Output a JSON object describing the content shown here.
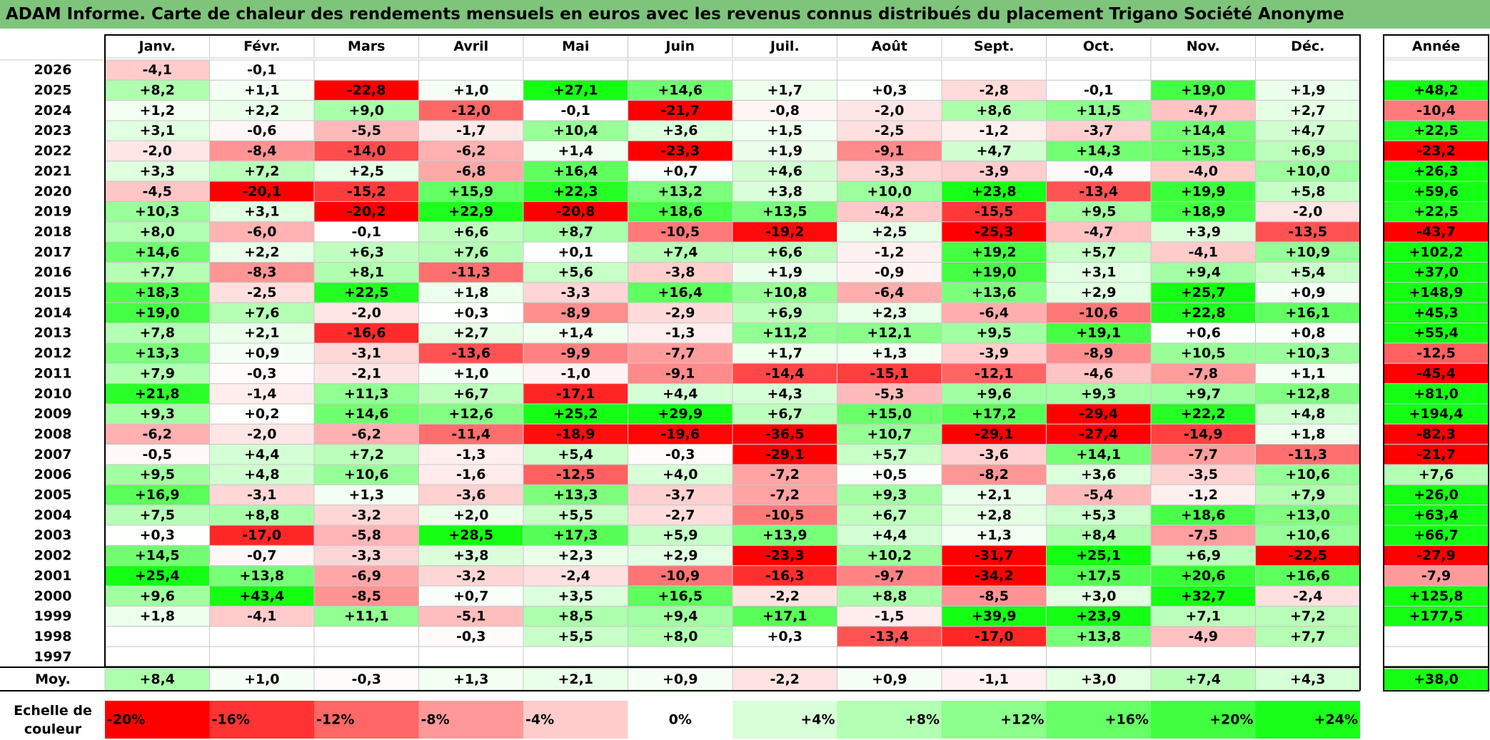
{
  "title": "ADAM Informe. Carte de chaleur des rendements mensuels en euros avec les revenus connus distribués du placement Trigano Société Anonyme",
  "chart_data": {
    "type": "heatmap",
    "columns": [
      "Janv.",
      "Févr.",
      "Mars",
      "Avril",
      "Mai",
      "Juin",
      "Juil.",
      "Août",
      "Sept.",
      "Oct.",
      "Nov.",
      "Déc."
    ],
    "annual_header": "Année",
    "rows": [
      {
        "year": "2026",
        "months": [
          "-4,1",
          "-0,1",
          "",
          "",
          "",
          "",
          "",
          "",
          "",
          "",
          "",
          ""
        ],
        "annual": ""
      },
      {
        "year": "2025",
        "months": [
          "+8,2",
          "+1,1",
          "-22,8",
          "+1,0",
          "+27,1",
          "+14,6",
          "+1,7",
          "+0,3",
          "-2,8",
          "-0,1",
          "+19,0",
          "+1,9"
        ],
        "annual": "+48,2"
      },
      {
        "year": "2024",
        "months": [
          "+1,2",
          "+2,2",
          "+9,0",
          "-12,0",
          "-0,1",
          "-21,7",
          "-0,8",
          "-2,0",
          "+8,6",
          "+11,5",
          "-4,7",
          "+2,7"
        ],
        "annual": "-10,4"
      },
      {
        "year": "2023",
        "months": [
          "+3,1",
          "-0,6",
          "-5,5",
          "-1,7",
          "+10,4",
          "+3,6",
          "+1,5",
          "-2,5",
          "-1,2",
          "-3,7",
          "+14,4",
          "+4,7"
        ],
        "annual": "+22,5"
      },
      {
        "year": "2022",
        "months": [
          "-2,0",
          "-8,4",
          "-14,0",
          "-6,2",
          "+1,4",
          "-23,3",
          "+1,9",
          "-9,1",
          "+4,7",
          "+14,3",
          "+15,3",
          "+6,9"
        ],
        "annual": "-23,2"
      },
      {
        "year": "2021",
        "months": [
          "+3,3",
          "+7,2",
          "+2,5",
          "-6,8",
          "+16,4",
          "+0,7",
          "+4,6",
          "-3,3",
          "-3,9",
          "-0,4",
          "-4,0",
          "+10,0"
        ],
        "annual": "+26,3"
      },
      {
        "year": "2020",
        "months": [
          "-4,5",
          "-20,1",
          "-15,2",
          "+15,9",
          "+22,3",
          "+13,2",
          "+3,8",
          "+10,0",
          "+23,8",
          "-13,4",
          "+19,9",
          "+5,8"
        ],
        "annual": "+59,6"
      },
      {
        "year": "2019",
        "months": [
          "+10,3",
          "+3,1",
          "-20,2",
          "+22,9",
          "-20,8",
          "+18,6",
          "+13,5",
          "-4,2",
          "-15,5",
          "+9,5",
          "+18,9",
          "-2,0"
        ],
        "annual": "+22,5"
      },
      {
        "year": "2018",
        "months": [
          "+8,0",
          "-6,0",
          "-0,1",
          "+6,6",
          "+8,7",
          "-10,5",
          "-19,2",
          "+2,5",
          "-25,3",
          "-4,7",
          "+3,9",
          "-13,5"
        ],
        "annual": "-43,7"
      },
      {
        "year": "2017",
        "months": [
          "+14,6",
          "+2,2",
          "+6,3",
          "+7,6",
          "+0,1",
          "+7,4",
          "+6,6",
          "-1,2",
          "+19,2",
          "+5,7",
          "-4,1",
          "+10,9"
        ],
        "annual": "+102,2"
      },
      {
        "year": "2016",
        "months": [
          "+7,7",
          "-8,3",
          "+8,1",
          "-11,3",
          "+5,6",
          "-3,8",
          "+1,9",
          "-0,9",
          "+19,0",
          "+3,1",
          "+9,4",
          "+5,4"
        ],
        "annual": "+37,0"
      },
      {
        "year": "2015",
        "months": [
          "+18,3",
          "-2,5",
          "+22,5",
          "+1,8",
          "-3,3",
          "+16,4",
          "+10,8",
          "-6,4",
          "+13,6",
          "+2,9",
          "+25,7",
          "+0,9"
        ],
        "annual": "+148,9"
      },
      {
        "year": "2014",
        "months": [
          "+19,0",
          "+7,6",
          "-2,0",
          "+0,3",
          "-8,9",
          "-2,9",
          "+6,9",
          "+2,3",
          "-6,4",
          "-10,6",
          "+22,8",
          "+16,1"
        ],
        "annual": "+45,3"
      },
      {
        "year": "2013",
        "months": [
          "+7,8",
          "+2,1",
          "-16,6",
          "+2,7",
          "+1,4",
          "-1,3",
          "+11,2",
          "+12,1",
          "+9,5",
          "+19,1",
          "+0,6",
          "+0,8"
        ],
        "annual": "+55,4"
      },
      {
        "year": "2012",
        "months": [
          "+13,3",
          "+0,9",
          "-3,1",
          "-13,6",
          "-9,9",
          "-7,7",
          "+1,7",
          "+1,3",
          "-3,9",
          "-8,9",
          "+10,5",
          "+10,3"
        ],
        "annual": "-12,5"
      },
      {
        "year": "2011",
        "months": [
          "+7,9",
          "-0,3",
          "-2,1",
          "+1,0",
          "-1,0",
          "-9,1",
          "-14,4",
          "-15,1",
          "-12,1",
          "-4,6",
          "-7,8",
          "+1,1"
        ],
        "annual": "-45,4"
      },
      {
        "year": "2010",
        "months": [
          "+21,8",
          "-1,4",
          "+11,3",
          "+6,7",
          "-17,1",
          "+4,4",
          "+4,3",
          "-5,3",
          "+9,6",
          "+9,3",
          "+9,7",
          "+12,8"
        ],
        "annual": "+81,0"
      },
      {
        "year": "2009",
        "months": [
          "+9,3",
          "+0,2",
          "+14,6",
          "+12,6",
          "+25,2",
          "+29,9",
          "+6,7",
          "+15,0",
          "+17,2",
          "-29,4",
          "+22,2",
          "+4,8"
        ],
        "annual": "+194,4"
      },
      {
        "year": "2008",
        "months": [
          "-6,2",
          "-2,0",
          "-6,2",
          "-11,4",
          "-18,9",
          "-19,6",
          "-36,5",
          "+10,7",
          "-29,1",
          "-27,4",
          "-14,9",
          "+1,8"
        ],
        "annual": "-82,3"
      },
      {
        "year": "2007",
        "months": [
          "-0,5",
          "+4,4",
          "+7,2",
          "-1,3",
          "+5,4",
          "-0,3",
          "-29,1",
          "+5,7",
          "-3,6",
          "+14,1",
          "-7,7",
          "-11,3"
        ],
        "annual": "-21,7"
      },
      {
        "year": "2006",
        "months": [
          "+9,5",
          "+4,8",
          "+10,6",
          "-1,6",
          "-12,5",
          "+4,0",
          "-7,2",
          "+0,5",
          "-8,2",
          "+3,6",
          "-3,5",
          "+10,6"
        ],
        "annual": "+7,6"
      },
      {
        "year": "2005",
        "months": [
          "+16,9",
          "-3,1",
          "+1,3",
          "-3,6",
          "+13,3",
          "-3,7",
          "-7,2",
          "+9,3",
          "+2,1",
          "-5,4",
          "-1,2",
          "+7,9"
        ],
        "annual": "+26,0"
      },
      {
        "year": "2004",
        "months": [
          "+7,5",
          "+8,8",
          "-3,2",
          "+2,0",
          "+5,5",
          "-2,7",
          "-10,5",
          "+6,7",
          "+2,8",
          "+5,3",
          "+18,6",
          "+13,0"
        ],
        "annual": "+63,4"
      },
      {
        "year": "2003",
        "months": [
          "+0,3",
          "-17,0",
          "-5,8",
          "+28,5",
          "+17,3",
          "+5,9",
          "+13,9",
          "+4,4",
          "+1,3",
          "+8,4",
          "-7,5",
          "+10,6"
        ],
        "annual": "+66,7"
      },
      {
        "year": "2002",
        "months": [
          "+14,5",
          "-0,7",
          "-3,3",
          "+3,8",
          "+2,3",
          "+2,9",
          "-23,3",
          "+10,2",
          "-31,7",
          "+25,1",
          "+6,9",
          "-22,5"
        ],
        "annual": "-27,9"
      },
      {
        "year": "2001",
        "months": [
          "+25,4",
          "+13,8",
          "-6,9",
          "-3,2",
          "-2,4",
          "-10,9",
          "-16,3",
          "-9,7",
          "-34,2",
          "+17,5",
          "+20,6",
          "+16,6"
        ],
        "annual": "-7,9"
      },
      {
        "year": "2000",
        "months": [
          "+9,6",
          "+43,4",
          "-8,5",
          "+0,7",
          "+3,5",
          "+16,5",
          "-2,2",
          "+8,8",
          "-8,5",
          "+3,0",
          "+32,7",
          "-2,4"
        ],
        "annual": "+125,8"
      },
      {
        "year": "1999",
        "months": [
          "+1,8",
          "-4,1",
          "+11,1",
          "-5,1",
          "+8,5",
          "+9,4",
          "+17,1",
          "-1,5",
          "+39,9",
          "+23,9",
          "+7,1",
          "+7,2"
        ],
        "annual": "+177,5"
      },
      {
        "year": "1998",
        "months": [
          "",
          "",
          "",
          "-0,3",
          "+5,5",
          "+8,0",
          "+0,3",
          "-13,4",
          "-17,0",
          "+13,8",
          "-4,9",
          "+7,7"
        ],
        "annual": ""
      },
      {
        "year": "1997",
        "months": [
          "",
          "",
          "",
          "",
          "",
          "",
          "",
          "",
          "",
          "",
          "",
          ""
        ],
        "annual": ""
      }
    ],
    "average": {
      "label": "Moy.",
      "months": [
        "+8,4",
        "+1,0",
        "-0,3",
        "+1,3",
        "+2,1",
        "+0,9",
        "-2,2",
        "+0,9",
        "-1,1",
        "+3,0",
        "+7,4",
        "+4,3"
      ],
      "annual": "+38,0"
    },
    "scale": {
      "label_lines": [
        "Echelle de",
        "couleur"
      ],
      "steps": [
        {
          "label": "-20%",
          "value": -20,
          "color": "#ff0000"
        },
        {
          "label": "-16%",
          "value": -16,
          "color": "#ff3333"
        },
        {
          "label": "-12%",
          "value": -12,
          "color": "#ff6666"
        },
        {
          "label": "-8%",
          "value": -8,
          "color": "#ff9999"
        },
        {
          "label": "-4%",
          "value": -4,
          "color": "#ffcccc"
        },
        {
          "label": "0%",
          "value": 0,
          "color": "#ffffff"
        },
        {
          "label": "+4%",
          "value": 4,
          "color": "#d9ffd9"
        },
        {
          "label": "+8%",
          "value": 8,
          "color": "#b3ffb3"
        },
        {
          "label": "+12%",
          "value": 12,
          "color": "#8cff8c"
        },
        {
          "label": "+16%",
          "value": 16,
          "color": "#66ff66"
        },
        {
          "label": "+20%",
          "value": 20,
          "color": "#40ff40"
        },
        {
          "label": "+24%",
          "value": 24,
          "color": "#1aff1a"
        }
      ]
    }
  },
  "colors": {
    "title_bar": "#7ec47b",
    "grid": "#c8c8c8",
    "border": "#000000"
  }
}
